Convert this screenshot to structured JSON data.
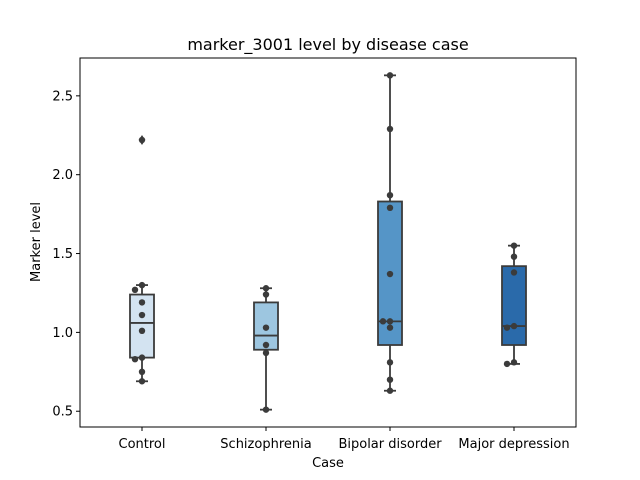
{
  "chart_data": {
    "type": "boxplot",
    "title": "marker_3001 level by disease case",
    "xlabel": "Case",
    "ylabel": "Marker level",
    "ylim": [
      0.4,
      2.74
    ],
    "yticks": [
      0.5,
      1.0,
      1.5,
      2.0,
      2.5
    ],
    "ytick_labels": [
      "0.5",
      "1.0",
      "1.5",
      "2.0",
      "2.5"
    ],
    "grid": false,
    "categories": [
      "Control",
      "Schizophrenia",
      "Bipolar disorder",
      "Major depression"
    ],
    "boxes": [
      {
        "category": "Control",
        "color": "#d3e3f1",
        "whisker_low": 0.69,
        "q1": 0.84,
        "median": 1.06,
        "q3": 1.24,
        "whisker_high": 1.3,
        "outliers": [
          2.22
        ]
      },
      {
        "category": "Schizophrenia",
        "color": "#9dc6e0",
        "whisker_low": 0.51,
        "q1": 0.89,
        "median": 0.98,
        "q3": 1.19,
        "whisker_high": 1.28,
        "outliers": []
      },
      {
        "category": "Bipolar disorder",
        "color": "#5595c7",
        "whisker_low": 0.63,
        "q1": 0.92,
        "median": 1.07,
        "q3": 1.83,
        "whisker_high": 2.63,
        "outliers": []
      },
      {
        "category": "Major depression",
        "color": "#2a6aaa",
        "whisker_low": 0.8,
        "q1": 0.92,
        "median": 1.04,
        "q3": 1.42,
        "whisker_high": 1.55,
        "outliers": []
      }
    ],
    "points": [
      {
        "category": "Control",
        "values": [
          2.22,
          1.3,
          1.27,
          1.19,
          1.11,
          1.01,
          0.84,
          0.83,
          0.75,
          0.69
        ]
      },
      {
        "category": "Schizophrenia",
        "values": [
          1.28,
          1.24,
          1.03,
          0.92,
          0.87,
          0.51
        ]
      },
      {
        "category": "Bipolar disorder",
        "values": [
          2.63,
          2.29,
          1.87,
          1.79,
          1.37,
          1.07,
          1.07,
          1.03,
          0.81,
          0.7,
          0.63
        ]
      },
      {
        "category": "Major depression",
        "values": [
          1.55,
          1.48,
          1.38,
          1.04,
          1.03,
          0.81,
          0.8
        ]
      }
    ],
    "point_color": "#3b3b3b",
    "line_color": "#3b3b3b"
  }
}
